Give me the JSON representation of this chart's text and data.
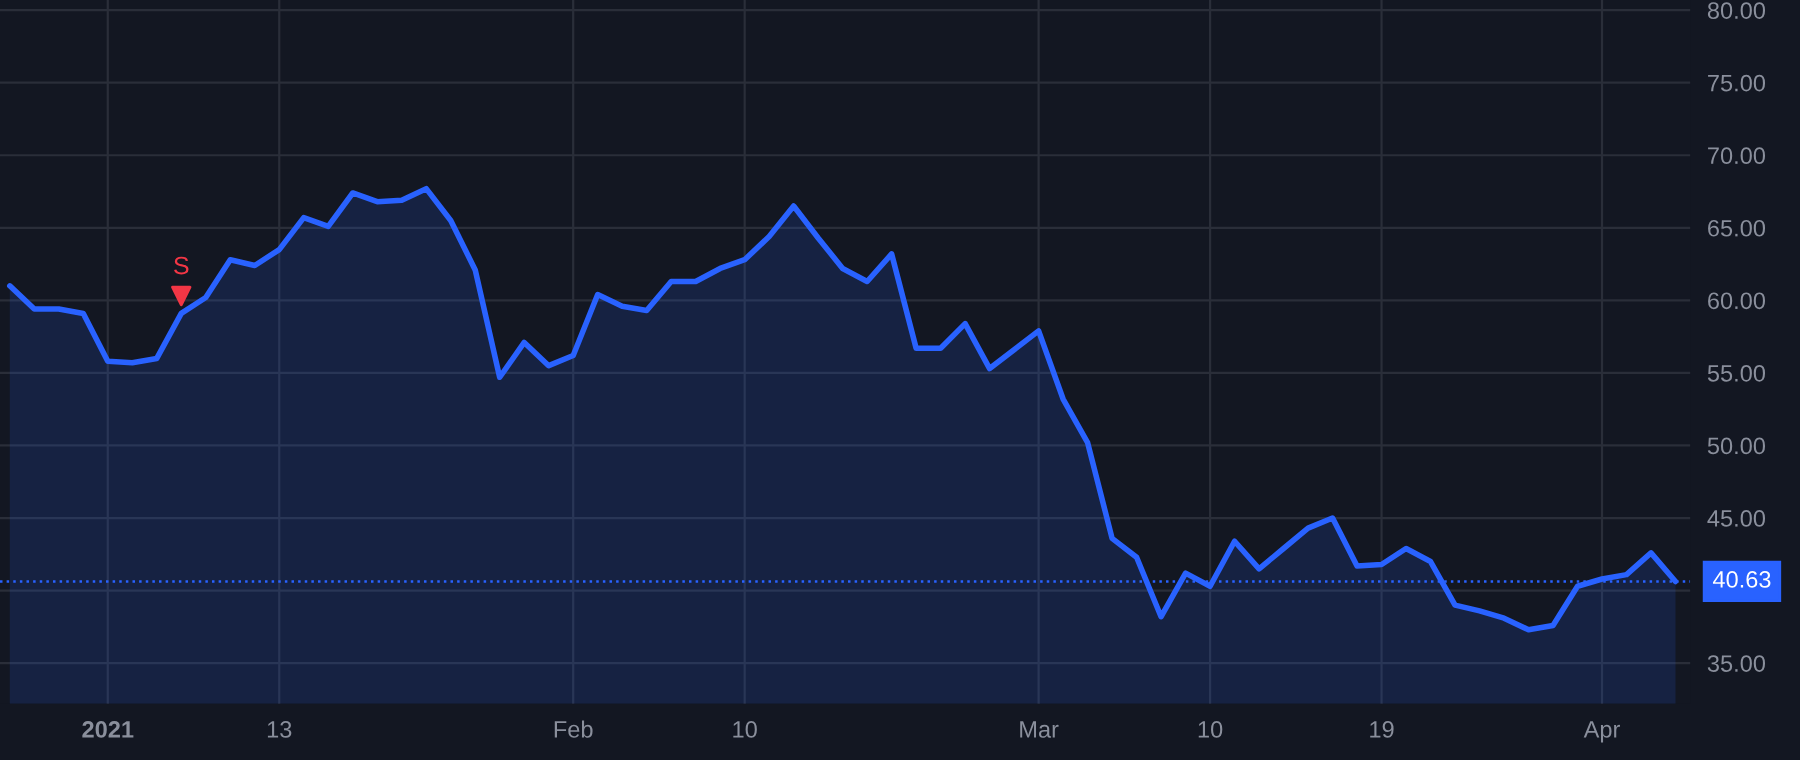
{
  "chart_data": {
    "type": "area",
    "categories": [
      null,
      null,
      null,
      null,
      "2021",
      null,
      null,
      null,
      null,
      null,
      null,
      "13",
      null,
      null,
      null,
      null,
      null,
      null,
      null,
      null,
      null,
      null,
      null,
      "Feb",
      null,
      null,
      null,
      null,
      null,
      null,
      "10",
      null,
      null,
      null,
      null,
      null,
      null,
      null,
      null,
      null,
      null,
      null,
      "Mar",
      null,
      null,
      null,
      null,
      null,
      null,
      "10",
      null,
      null,
      null,
      null,
      null,
      null,
      "19",
      null,
      null,
      null,
      null,
      null,
      null,
      null,
      null,
      "Apr",
      null,
      null,
      null
    ],
    "series": [
      {
        "color": "#2962ff",
        "values": [
          61.0,
          59.4,
          59.4,
          59.1,
          55.8,
          55.7,
          56.0,
          59.1,
          60.2,
          62.8,
          62.4,
          63.5,
          65.7,
          65.1,
          67.4,
          66.8,
          66.9,
          67.7,
          65.5,
          62.1,
          54.7,
          57.1,
          55.5,
          56.2,
          60.4,
          59.6,
          59.3,
          61.3,
          61.3,
          62.2,
          62.8,
          64.4,
          66.5,
          64.3,
          62.2,
          61.3,
          63.2,
          56.7,
          56.7,
          58.4,
          55.3,
          56.6,
          57.9,
          53.2,
          50.2,
          43.6,
          42.3,
          38.2,
          41.2,
          40.3,
          43.4,
          41.5,
          42.9,
          44.3,
          45.0,
          41.7,
          41.8,
          42.9,
          42.0,
          39.0,
          38.6,
          38.1,
          37.3,
          37.6,
          40.3,
          40.8,
          41.1,
          42.6,
          40.63
        ]
      },
      {
        "type": "scatter",
        "color": "#f23645",
        "marker": "triangle",
        "values": [
          null,
          null,
          null,
          null,
          null,
          null,
          null,
          60.3,
          null,
          null,
          null,
          null,
          null,
          null,
          null,
          null,
          null,
          null,
          null,
          null,
          null,
          null,
          null,
          null,
          null,
          null,
          null,
          null,
          null,
          null,
          null,
          null,
          null,
          null,
          null,
          null,
          null,
          null,
          null,
          null,
          null,
          null,
          null,
          null,
          null,
          null,
          null,
          null,
          null,
          null,
          null,
          null,
          null,
          null,
          null,
          null,
          null,
          null,
          null,
          null,
          null,
          null,
          null,
          null,
          null,
          null,
          null,
          null,
          null
        ]
      }
    ],
    "ylim": [
      32.2,
      80.7
    ],
    "yticks": [
      {
        "value": 35,
        "label": "35.00"
      },
      {
        "value": 40,
        "label": null
      },
      {
        "value": 45,
        "label": "45.00"
      },
      {
        "value": 50,
        "label": "50.00"
      },
      {
        "value": 55,
        "label": "55.00"
      },
      {
        "value": 60,
        "label": "60.00"
      },
      {
        "value": 65,
        "label": "65.00"
      },
      {
        "value": 70,
        "label": "70.00"
      },
      {
        "value": 75,
        "label": "75.00"
      },
      {
        "value": 80,
        "label": "80.00"
      }
    ],
    "ref_lines": [
      {
        "axis": "y",
        "value": 40.63,
        "label": "40.63",
        "color": "#2962ff",
        "line_style": "dotted"
      }
    ],
    "annotations": [
      "S"
    ],
    "grid": true,
    "legend": false,
    "marker": "none",
    "line_style": "solid"
  }
}
